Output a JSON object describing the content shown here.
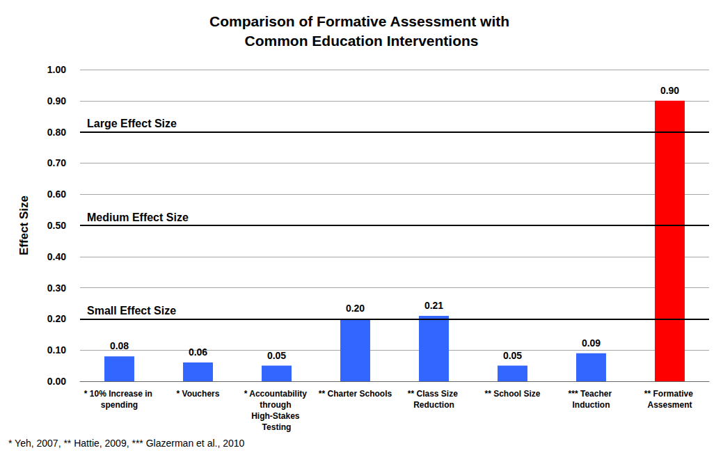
{
  "chart_data": {
    "type": "bar",
    "title": "Comparison of Formative Assessment with Common Education Interventions",
    "y_label": "Effect Size",
    "categories": [
      "* 10% Increase in spending",
      "* Vouchers",
      "* Accountability through High-Stakes Testing",
      "** Charter Schools",
      "** Class Size Reduction",
      "** School Size",
      "*** Teacher Induction",
      "** Formative Assesment"
    ],
    "values": [
      0.08,
      0.06,
      0.05,
      0.2,
      0.21,
      0.05,
      0.09,
      0.9
    ],
    "value_labels": [
      "0.08",
      "0.06",
      "0.05",
      "0.20",
      "0.21",
      "0.05",
      "0.09",
      "0.90"
    ],
    "colors": [
      "#3366ff",
      "#3366ff",
      "#3366ff",
      "#3366ff",
      "#3366ff",
      "#3366ff",
      "#3366ff",
      "#ff0000"
    ],
    "ylim": [
      0,
      1
    ],
    "yticks": [
      {
        "value": 0,
        "label": "0.00"
      },
      {
        "value": 0.1,
        "label": "0.10"
      },
      {
        "value": 0.2,
        "label": "0.20"
      },
      {
        "value": 0.3,
        "label": "0.30"
      },
      {
        "value": 0.4,
        "label": "0.40"
      },
      {
        "value": 0.5,
        "label": "0.50"
      },
      {
        "value": 0.6,
        "label": "0.60"
      },
      {
        "value": 0.7,
        "label": "0.70"
      },
      {
        "value": 0.8,
        "label": "0.80"
      },
      {
        "value": 0.9,
        "label": "0.90"
      },
      {
        "value": 1,
        "label": "1.00"
      }
    ],
    "grid": true,
    "data_labels": true,
    "annotations": [
      {
        "text": "Large Effect Size",
        "y": 0.8
      },
      {
        "text": "Medium Effect Size",
        "y": 0.5
      },
      {
        "text": "Small Effect Size",
        "y": 0.2
      }
    ],
    "footnote": "* Yeh, 2007, ** Hattie, 2009, *** Glazerman et al., 2010"
  }
}
